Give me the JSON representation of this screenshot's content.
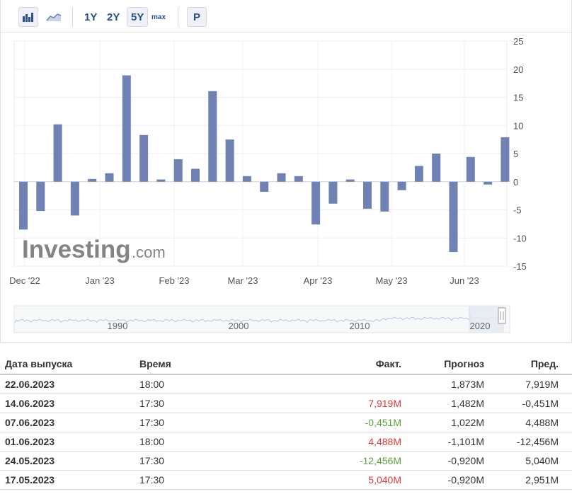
{
  "toolbar": {
    "bar_icon": "bar-chart-icon",
    "area_icon": "area-chart-icon",
    "ranges": [
      "1Y",
      "2Y",
      "5Y",
      "max"
    ],
    "active_range": "5Y",
    "p_label": "P"
  },
  "watermark": {
    "brand": "Investing",
    "suffix": ".com"
  },
  "chart_data": {
    "type": "bar",
    "color": "#6f82b3",
    "ylim": [
      -15,
      25
    ],
    "y_ticks": [
      "25",
      "20",
      "15",
      "10",
      "5",
      "0",
      "-5",
      "-10",
      "-15"
    ],
    "x_labels": [
      "Dec '22",
      "Jan '23",
      "Feb '23",
      "Mar '23",
      "Apr '23",
      "May '23",
      "Jun '23"
    ],
    "values": [
      -8.5,
      -5.2,
      10.2,
      -6.0,
      0.5,
      1.5,
      18.9,
      8.3,
      0.4,
      4.0,
      2.3,
      16.1,
      7.5,
      1.0,
      -1.8,
      1.5,
      1.0,
      -7.6,
      -3.9,
      0.4,
      -4.8,
      -5.3,
      -1.5,
      2.8,
      5.0,
      -12.5,
      4.4,
      -0.5,
      7.9
    ],
    "grid": true
  },
  "navigator": {
    "years": [
      "1990",
      "2000",
      "2010",
      "2020"
    ]
  },
  "table": {
    "headers": [
      "Дата выпуска",
      "Время",
      "Факт.",
      "Прогноз",
      "Пред."
    ],
    "rows": [
      {
        "date": "22.06.2023",
        "time": "18:00",
        "actual": "",
        "actual_color": "",
        "forecast": "1,873M",
        "previous": "7,919M"
      },
      {
        "date": "14.06.2023",
        "time": "17:30",
        "actual": "7,919M",
        "actual_color": "pos",
        "forecast": "1,482M",
        "previous": "-0,451M"
      },
      {
        "date": "07.06.2023",
        "time": "17:30",
        "actual": "-0,451M",
        "actual_color": "neg",
        "forecast": "1,022M",
        "previous": "4,488M"
      },
      {
        "date": "01.06.2023",
        "time": "18:00",
        "actual": "4,488M",
        "actual_color": "pos",
        "forecast": "-1,101M",
        "previous": "-12,456M"
      },
      {
        "date": "24.05.2023",
        "time": "17:30",
        "actual": "-12,456M",
        "actual_color": "neg",
        "forecast": "-0,920M",
        "previous": "5,040M"
      },
      {
        "date": "17.05.2023",
        "time": "17:30",
        "actual": "5,040M",
        "actual_color": "pos",
        "forecast": "-0,920M",
        "previous": "2,951M"
      }
    ]
  }
}
